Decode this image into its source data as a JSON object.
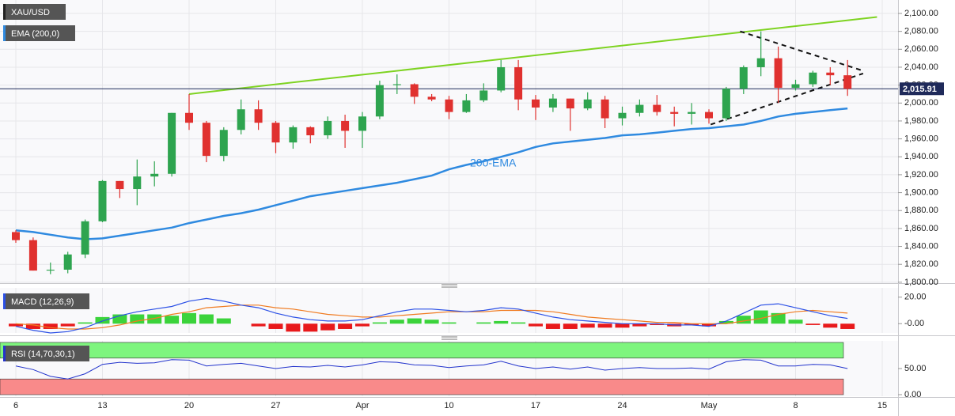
{
  "chart_data": [
    {
      "type": "candlestick",
      "title": "XAU/USD",
      "categories": [
        "6",
        null,
        null,
        null,
        null,
        "13",
        null,
        null,
        null,
        null,
        "20",
        null,
        null,
        null,
        null,
        "27",
        null,
        null,
        null,
        null,
        "Apr",
        null,
        null,
        null,
        null,
        "10",
        null,
        null,
        null,
        null,
        "17",
        null,
        null,
        null,
        null,
        "24",
        null,
        null,
        null,
        null,
        "May",
        null,
        null,
        null,
        null,
        "8",
        null,
        null,
        null,
        null,
        "15"
      ],
      "open": [
        1856,
        1847,
        1813,
        1814,
        1831,
        1868,
        1913,
        1904,
        1918,
        1921,
        1989,
        1978,
        1941,
        1970,
        1993,
        1978,
        1956,
        1973,
        1964,
        1980,
        1969,
        1985,
        2020,
        2021,
        2007,
        2004,
        1990,
        2003,
        2014,
        2040,
        2004,
        1995,
        2005,
        1994,
        2004,
        1983,
        1989,
        1998,
        1990,
        1988,
        1990,
        1983,
        2016,
        2040,
        2050,
        2017,
        2021,
        2034,
        2031,
        null,
        null
      ],
      "high": [
        1858,
        1850,
        1822,
        1834,
        1870,
        1914,
        1913,
        1937,
        1935,
        1989,
        2010,
        1980,
        1973,
        2004,
        2003,
        1980,
        1975,
        1974,
        1985,
        1987,
        1990,
        2025,
        2032,
        2022,
        2010,
        2008,
        2010,
        2022,
        2048,
        2048,
        2009,
        2010,
        2005,
        2012,
        2008,
        1996,
        2004,
        2009,
        1996,
        2000,
        1993,
        2018,
        2042,
        2080,
        2063,
        2026,
        2036,
        2040,
        2048,
        null,
        null
      ],
      "low": [
        1844,
        1813,
        1809,
        1810,
        1827,
        1867,
        1894,
        1886,
        1907,
        1918,
        1970,
        1934,
        1935,
        1965,
        1970,
        1944,
        1949,
        1955,
        1960,
        1950,
        1950,
        1982,
        2010,
        1999,
        2002,
        1982,
        1989,
        2001,
        2012,
        1992,
        1981,
        1990,
        1969,
        1992,
        1972,
        1975,
        1985,
        1986,
        1974,
        1976,
        1977,
        1980,
        2010,
        2030,
        2000,
        2014,
        2018,
        2020,
        2008,
        null,
        null
      ],
      "close": [
        1847,
        1813,
        1814,
        1831,
        1868,
        1913,
        1904,
        1918,
        1921,
        1989,
        1978,
        1941,
        1970,
        1993,
        1978,
        1956,
        1973,
        1964,
        1980,
        1969,
        1985,
        2020,
        2021,
        2007,
        2004,
        1990,
        2003,
        2014,
        2040,
        2004,
        1995,
        2005,
        1994,
        2004,
        1983,
        1989,
        1998,
        1990,
        1988,
        1990,
        1983,
        2016,
        2040,
        2050,
        2017,
        2021,
        2034,
        2031,
        2015.91,
        null,
        null
      ],
      "up_color": "#2ea44f",
      "down_color": "#e0312f",
      "series": [
        {
          "name": "EMA (200,0)",
          "color": "#2f8ae0",
          "values": [
            1858,
            1856,
            1853,
            1850,
            1848,
            1849,
            1852,
            1855,
            1858,
            1861,
            1866,
            1870,
            1874,
            1877,
            1881,
            1886,
            1891,
            1896,
            1899,
            1902,
            1905,
            1908,
            1911,
            1915,
            1919,
            1926,
            1931,
            1935,
            1940,
            1945,
            1951,
            1955,
            1957,
            1959,
            1961,
            1964,
            1965,
            1967,
            1969,
            1971,
            1972,
            1974,
            1976,
            1980,
            1985,
            1988,
            1990,
            1992,
            1994,
            null,
            null
          ]
        }
      ],
      "annotations": [
        "200-EMA"
      ],
      "trendlines": [
        {
          "x": [
            10,
            49.7
          ],
          "y": [
            2010,
            2096
          ],
          "color": "#7ed321",
          "dash": false
        },
        {
          "x": [
            41.8,
            48.9
          ],
          "y": [
            2080,
            2036
          ],
          "color": "#111111",
          "dash": true
        },
        {
          "x": [
            40.1,
            48.9
          ],
          "y": [
            1976,
            2033
          ],
          "color": "#111111",
          "dash": true
        }
      ],
      "last_price": {
        "value": 2015.91,
        "label": "2,015.91"
      },
      "ylim": [
        1799,
        2115
      ],
      "yticks": [
        {
          "value": 1800,
          "label": "1,800.00"
        },
        {
          "value": 1820,
          "label": "1,820.00"
        },
        {
          "value": 1840,
          "label": "1,840.00"
        },
        {
          "value": 1860,
          "label": "1,860.00"
        },
        {
          "value": 1880,
          "label": "1,880.00"
        },
        {
          "value": 1900,
          "label": "1,900.00"
        },
        {
          "value": 1920,
          "label": "1,920.00"
        },
        {
          "value": 1940,
          "label": "1,940.00"
        },
        {
          "value": 1960,
          "label": "1,960.00"
        },
        {
          "value": 1980,
          "label": "1,980.00"
        },
        {
          "value": 2000,
          "label": "2,000.00"
        },
        {
          "value": 2020,
          "label": "2,020.00"
        },
        {
          "value": 2040,
          "label": "2,040.00"
        },
        {
          "value": 2060,
          "label": "2,060.00"
        },
        {
          "value": 2080,
          "label": "2,080.00"
        },
        {
          "value": 2100,
          "label": "2,100.00"
        }
      ],
      "grid": true
    },
    {
      "type": "macd",
      "title": "MACD (12,26,9)",
      "macd": {
        "color": "#2b50e6",
        "values": [
          -2,
          -5,
          -7,
          -6,
          -3,
          2,
          6,
          9,
          11,
          13,
          17,
          19,
          17,
          14,
          12,
          8,
          5,
          3,
          2,
          2,
          3,
          6,
          9,
          11,
          11,
          10,
          9,
          10,
          12,
          11,
          8,
          5,
          3,
          2,
          1,
          0,
          0,
          0,
          -1,
          -1,
          -2,
          2,
          8,
          14,
          15,
          12,
          9,
          6,
          4,
          null,
          null
        ]
      },
      "signal": {
        "color": "#f07b20",
        "values": [
          0,
          -1,
          -3,
          -4,
          -4,
          -3,
          -1,
          2,
          4,
          7,
          9,
          12,
          13,
          14,
          14,
          12,
          11,
          9,
          7,
          6,
          5,
          5,
          6,
          7,
          8,
          9,
          9,
          9,
          10,
          10,
          10,
          9,
          7,
          5,
          4,
          3,
          2,
          1,
          1,
          0,
          0,
          0,
          2,
          4,
          7,
          9,
          10,
          9,
          8,
          null,
          null
        ]
      },
      "histogram": {
        "pos_color": "#3bd33b",
        "neg_color": "#e8191b",
        "values": [
          -2,
          -4,
          -4,
          -2,
          1,
          5,
          7,
          7,
          7,
          6,
          8,
          7,
          4,
          0,
          -2,
          -4,
          -6,
          -6,
          -5,
          -4,
          -2,
          1,
          3,
          4,
          3,
          1,
          0,
          1,
          2,
          1,
          -2,
          -4,
          -4,
          -3,
          -3,
          -3,
          -2,
          -1,
          -2,
          -1,
          -2,
          2,
          6,
          10,
          8,
          3,
          -1,
          -3,
          -4,
          null,
          null
        ]
      },
      "ylim": [
        -7,
        27
      ],
      "yticks": [
        {
          "value": 20,
          "label": "20.00"
        },
        {
          "value": 0,
          "label": "-0.00"
        }
      ]
    },
    {
      "type": "rsi",
      "title": "RSI (14,70,30,1)",
      "color": "#2233cc",
      "values": [
        55,
        48,
        35,
        30,
        40,
        58,
        62,
        60,
        61,
        67,
        66,
        55,
        58,
        60,
        55,
        50,
        54,
        53,
        56,
        53,
        57,
        63,
        62,
        57,
        56,
        52,
        55,
        57,
        64,
        55,
        50,
        53,
        49,
        53,
        47,
        50,
        52,
        50,
        50,
        51,
        49,
        63,
        67,
        66,
        55,
        55,
        58,
        57,
        50,
        null,
        null
      ],
      "bands": [
        {
          "from": 70,
          "to": 100,
          "color": "#7ef57e"
        },
        {
          "from": 0,
          "to": 30,
          "color": "#f98a8a"
        }
      ],
      "ylim": [
        0,
        100
      ],
      "yticks": [
        {
          "value": 50,
          "label": "50.00"
        },
        {
          "value": 0,
          "label": "0.00"
        }
      ]
    }
  ]
}
